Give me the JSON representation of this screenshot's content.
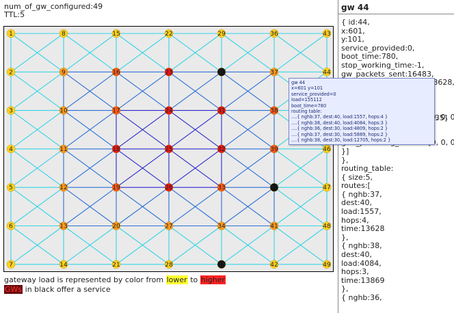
{
  "header": {
    "gw_configured": "num_of_gw_configured:49",
    "ttl": "TTL:5"
  },
  "grid": {
    "labels": [
      [
        "1",
        "8",
        "15",
        "22",
        "29",
        "36",
        "43"
      ],
      [
        "2",
        "9",
        "16",
        "23",
        "30",
        "37",
        "44"
      ],
      [
        "3",
        "10",
        "17",
        "24",
        "31",
        "38",
        "45"
      ],
      [
        "4",
        "11",
        "18",
        "25",
        "32",
        "39",
        "46"
      ],
      [
        "5",
        "12",
        "19",
        "26",
        "33",
        "40",
        "47"
      ],
      [
        "6",
        "13",
        "20",
        "27",
        "34",
        "41",
        "48"
      ],
      [
        "7",
        "14",
        "21",
        "28",
        "35",
        "42",
        "49"
      ]
    ],
    "load_levels": [
      [
        0,
        0,
        0,
        0,
        0,
        0,
        0
      ],
      [
        0,
        1,
        2,
        3,
        4,
        1,
        0
      ],
      [
        0,
        1,
        2,
        3,
        3,
        2,
        0
      ],
      [
        0,
        1,
        3,
        3,
        3,
        2,
        0
      ],
      [
        0,
        1,
        2,
        3,
        2,
        4,
        0
      ],
      [
        0,
        1,
        1,
        1,
        1,
        1,
        0
      ],
      [
        0,
        0,
        0,
        0,
        4,
        0,
        0
      ]
    ],
    "load_colors": [
      "#ffd21f",
      "#ff9a22",
      "#ff5a1a",
      "#e81818",
      "#111111"
    ],
    "edge_colors": {
      "boundary": "#33d5e6",
      "inner": "#2b6fd8",
      "core": "#2a2acc"
    }
  },
  "legend": {
    "line1_prefix": "gateway load is represented by color from ",
    "lower": "lower",
    "to": " to ",
    "higher": "higher",
    "gws": "GWs",
    "line2_suffix": " in black offer a service"
  },
  "panel": {
    "title": "gw 44",
    "lines": [
      "{ id:44,",
      "x:601,",
      "y:101,",
      "service_provided:0,",
      "boot_time:780,",
      "stop_working_time:-1,",
      "gw_packets_sent:16483,",
      "gw_packets_received:138628,",
      "",
      "",
      "",
      "gws_providing_service:[0, 0, 0]",
      "},",
      "{ service_type:0,",
      "gws_providing_service:[0, 0, 0]",
      "}]",
      "},",
      "routing_table:",
      "{ size:5,",
      "routes:[",
      "{ nghb:37,",
      "dest:40,",
      "load:1557,",
      "hops:4,",
      "time:13628",
      "},",
      "{ nghb:38,",
      "dest:40,",
      "load:4084,",
      "hops:3,",
      "time:13869",
      "},",
      "{ nghb:36,"
    ]
  },
  "tooltip": {
    "lines": [
      "gw 44",
      "x=601 y=101",
      "service_provided=0",
      "load=155112",
      "boot_time=780",
      "routing table:",
      "....{ nghb:37, dest:40, load:1557, hops:4 }",
      "....{ nghb:38, dest:40, load:4084, hops:3 }",
      "....{ nghb:36, dest:30, load:4809, hops:2 }",
      "....{ nghb:37, dest:30, load:5889, hops:2 }",
      "....{ nghb:38, dest:30, load:12705, hops:2 }"
    ],
    "side_overflow": "35]"
  }
}
